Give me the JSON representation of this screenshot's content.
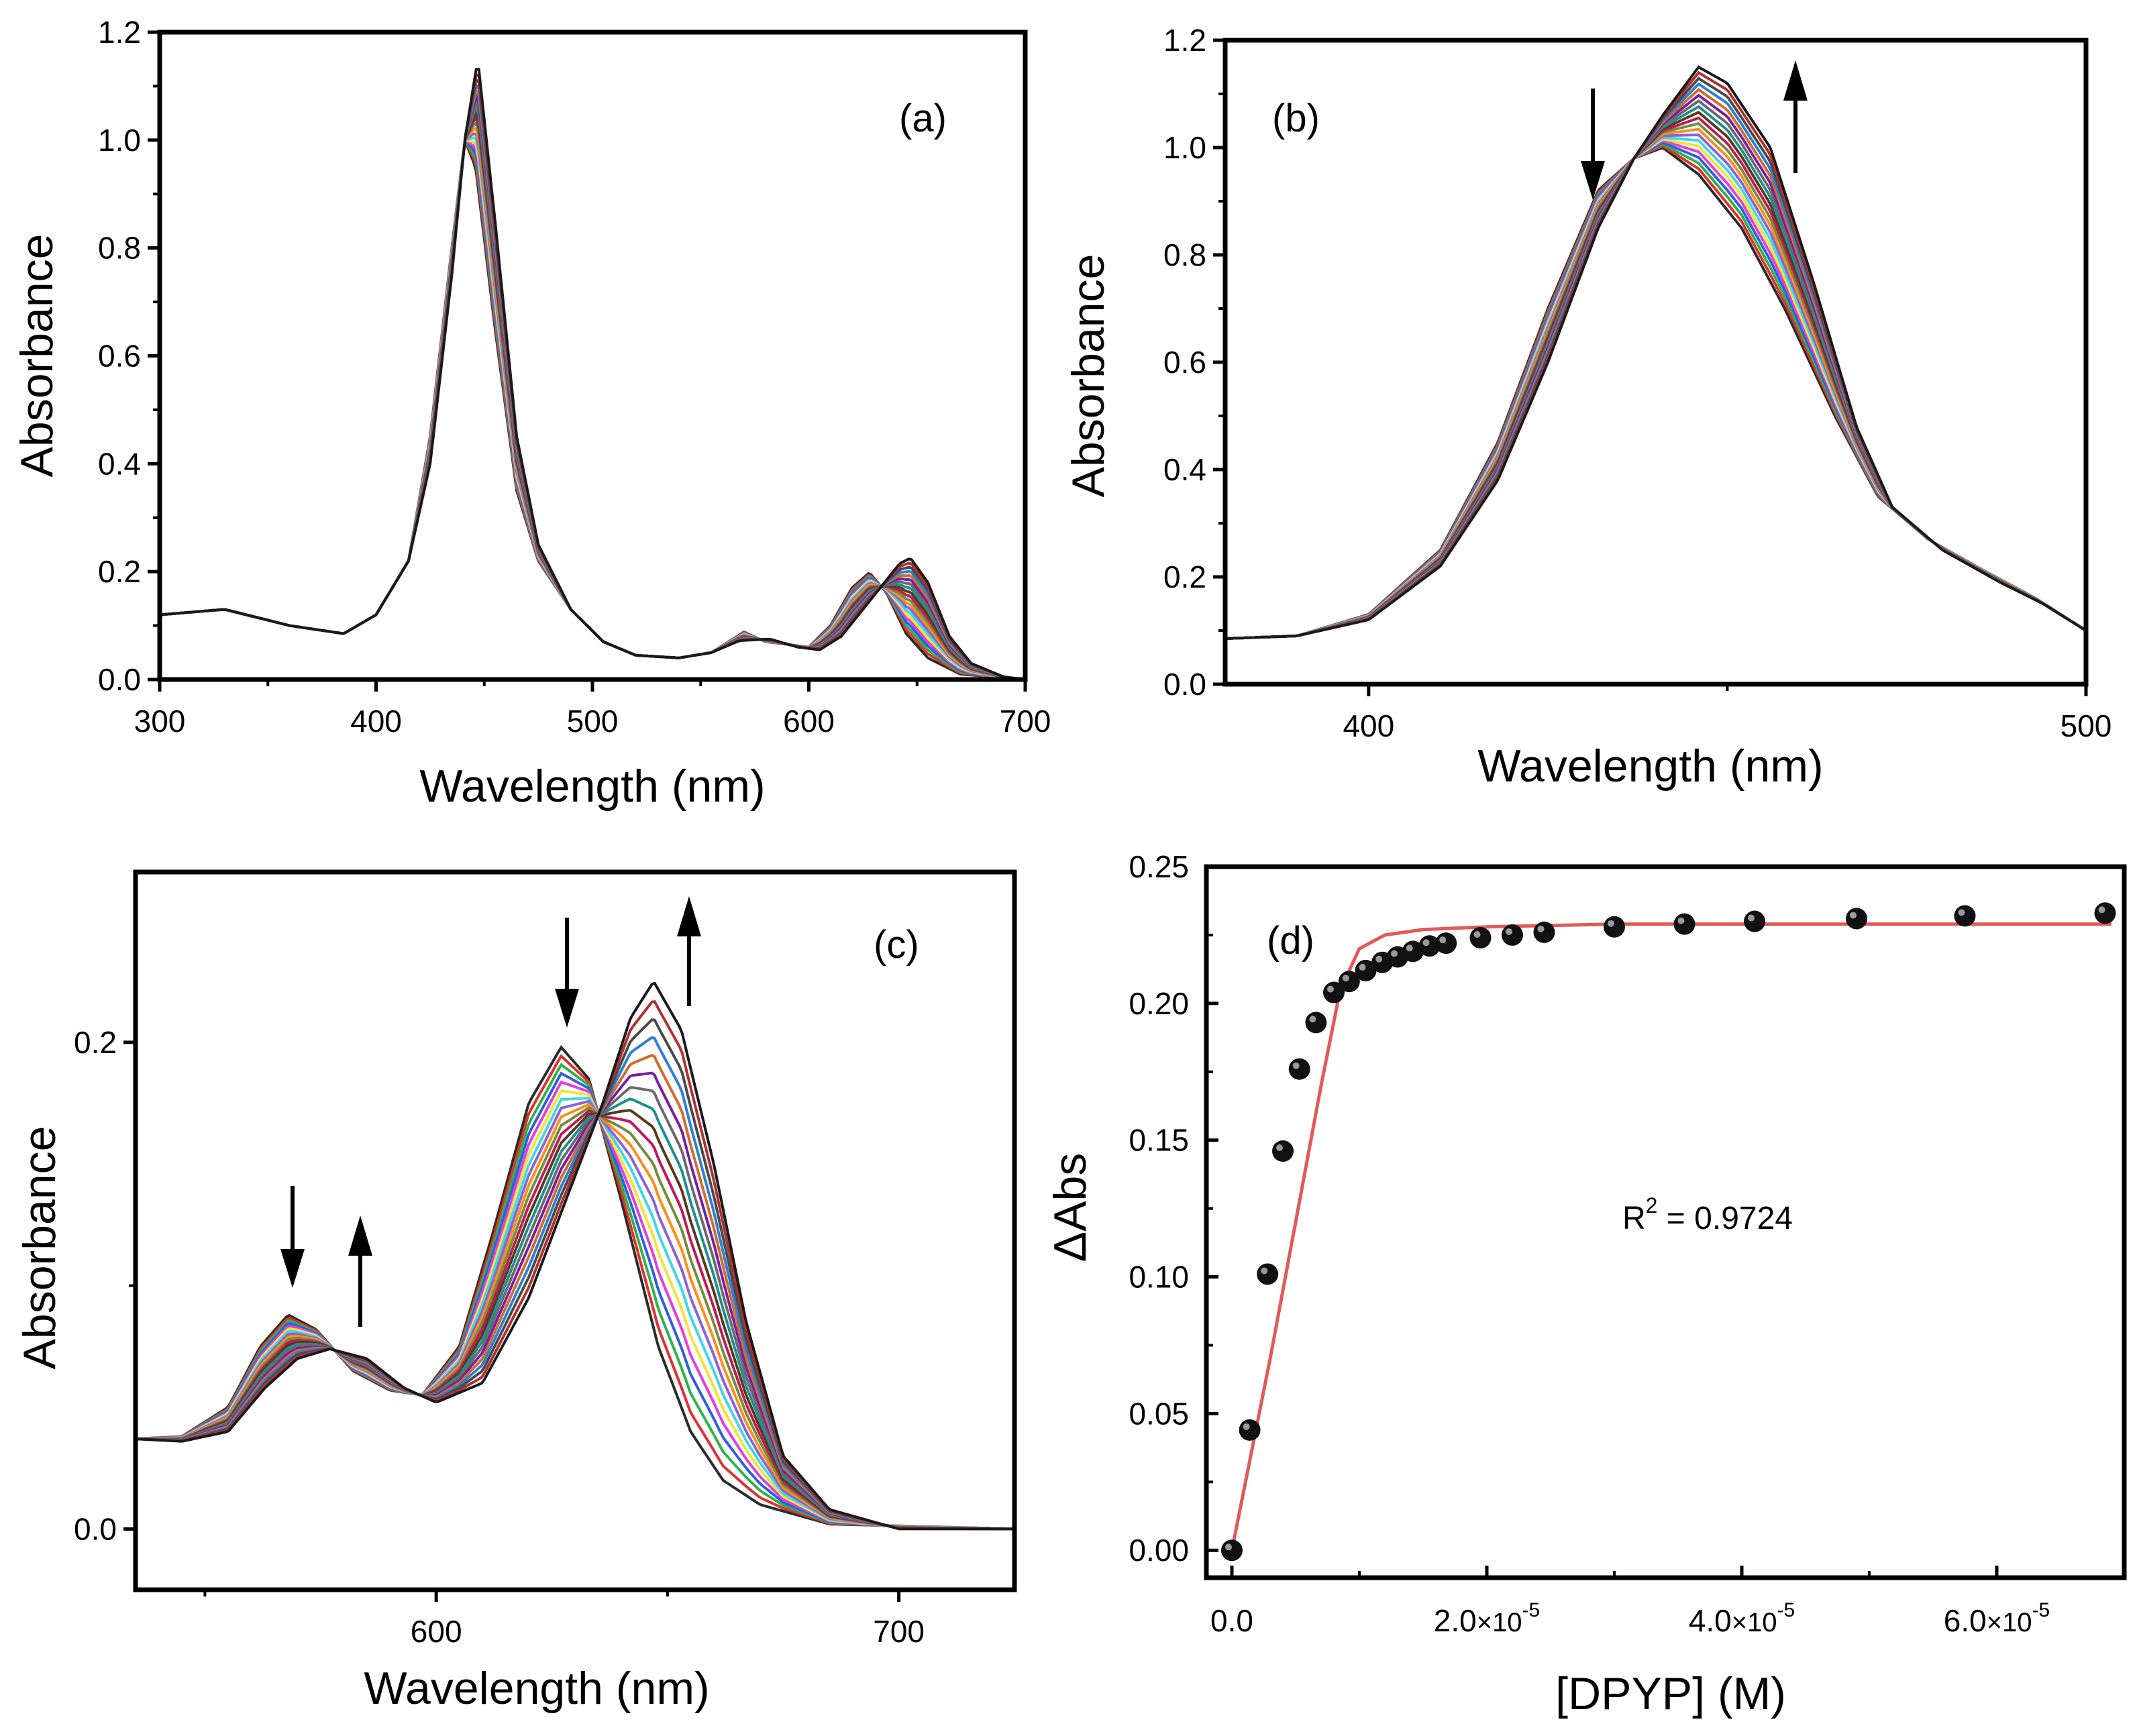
{
  "figure": {
    "panels": [
      "(a)",
      "(b)",
      "(c)",
      "(d)"
    ]
  },
  "chart_data": [
    {
      "id": "a",
      "type": "line",
      "label": "(a)",
      "xlabel": "Wavelength (nm)",
      "ylabel": "Absorbance",
      "xlim": [
        300,
        700
      ],
      "ylim": [
        0.0,
        1.2
      ],
      "xticks": [
        "300",
        "400",
        "500",
        "600",
        "700"
      ],
      "yticks": [
        "0.0",
        "0.2",
        "0.4",
        "0.6",
        "0.8",
        "1.0",
        "1.2"
      ],
      "series_count": 20,
      "spectrum_start": {
        "name": "initial spectrum",
        "points": [
          [
            300,
            0.12
          ],
          [
            330,
            0.13
          ],
          [
            360,
            0.1
          ],
          [
            385,
            0.085
          ],
          [
            400,
            0.12
          ],
          [
            415,
            0.22
          ],
          [
            425,
            0.45
          ],
          [
            435,
            0.8
          ],
          [
            441,
            1.0
          ],
          [
            446,
            0.95
          ],
          [
            455,
            0.65
          ],
          [
            465,
            0.35
          ],
          [
            475,
            0.22
          ],
          [
            490,
            0.13
          ],
          [
            505,
            0.07
          ],
          [
            520,
            0.045
          ],
          [
            540,
            0.04
          ],
          [
            555,
            0.05
          ],
          [
            570,
            0.088
          ],
          [
            580,
            0.07
          ],
          [
            590,
            0.065
          ],
          [
            600,
            0.06
          ],
          [
            610,
            0.1
          ],
          [
            620,
            0.17
          ],
          [
            628,
            0.198
          ],
          [
            636,
            0.16
          ],
          [
            645,
            0.085
          ],
          [
            655,
            0.04
          ],
          [
            670,
            0.01
          ],
          [
            700,
            0.0
          ]
        ]
      },
      "spectrum_end": {
        "name": "final spectrum",
        "points": [
          [
            300,
            0.12
          ],
          [
            330,
            0.13
          ],
          [
            360,
            0.1
          ],
          [
            385,
            0.085
          ],
          [
            400,
            0.12
          ],
          [
            415,
            0.22
          ],
          [
            425,
            0.4
          ],
          [
            435,
            0.75
          ],
          [
            441,
            1.0
          ],
          [
            447,
            1.15
          ],
          [
            455,
            0.85
          ],
          [
            465,
            0.45
          ],
          [
            475,
            0.25
          ],
          [
            490,
            0.13
          ],
          [
            505,
            0.07
          ],
          [
            520,
            0.045
          ],
          [
            540,
            0.04
          ],
          [
            555,
            0.05
          ],
          [
            568,
            0.072
          ],
          [
            582,
            0.075
          ],
          [
            595,
            0.06
          ],
          [
            605,
            0.055
          ],
          [
            615,
            0.08
          ],
          [
            625,
            0.13
          ],
          [
            635,
            0.18
          ],
          [
            642,
            0.215
          ],
          [
            647,
            0.225
          ],
          [
            655,
            0.18
          ],
          [
            665,
            0.08
          ],
          [
            675,
            0.03
          ],
          [
            690,
            0.005
          ],
          [
            700,
            0.0
          ]
        ]
      }
    },
    {
      "id": "b",
      "type": "line",
      "label": "(b)",
      "xlabel": "Wavelength (nm)",
      "ylabel": "Absorbance",
      "xlim": [
        380,
        500
      ],
      "ylim": [
        0.0,
        1.2
      ],
      "xticks": [
        "400",
        "500"
      ],
      "yticks": [
        "0.0",
        "0.2",
        "0.4",
        "0.6",
        "0.8",
        "1.0",
        "1.2"
      ],
      "series_count": 20,
      "annotations": [
        "arrow-down at ~430 nm (decrease)",
        "arrow-up at ~458 nm (increase)"
      ],
      "spectrum_start": {
        "name": "initial spectrum",
        "points": [
          [
            380,
            0.085
          ],
          [
            390,
            0.09
          ],
          [
            400,
            0.13
          ],
          [
            410,
            0.25
          ],
          [
            418,
            0.45
          ],
          [
            425,
            0.7
          ],
          [
            432,
            0.92
          ],
          [
            437,
            0.98
          ],
          [
            441,
            1.0
          ],
          [
            446,
            0.95
          ],
          [
            452,
            0.85
          ],
          [
            458,
            0.7
          ],
          [
            465,
            0.5
          ],
          [
            471,
            0.35
          ],
          [
            478,
            0.27
          ],
          [
            486,
            0.21
          ],
          [
            493,
            0.16
          ],
          [
            500,
            0.1
          ]
        ]
      },
      "spectrum_end": {
        "name": "final spectrum",
        "points": [
          [
            380,
            0.085
          ],
          [
            390,
            0.09
          ],
          [
            400,
            0.12
          ],
          [
            410,
            0.22
          ],
          [
            418,
            0.38
          ],
          [
            425,
            0.6
          ],
          [
            432,
            0.85
          ],
          [
            437,
            0.98
          ],
          [
            441,
            1.06
          ],
          [
            446,
            1.15
          ],
          [
            450,
            1.12
          ],
          [
            456,
            1.0
          ],
          [
            462,
            0.75
          ],
          [
            468,
            0.48
          ],
          [
            473,
            0.33
          ],
          [
            480,
            0.25
          ],
          [
            488,
            0.19
          ],
          [
            494,
            0.15
          ],
          [
            500,
            0.1
          ]
        ]
      }
    },
    {
      "id": "c",
      "type": "line",
      "label": "(c)",
      "xlabel": "Wavelength (nm)",
      "ylabel": "Absorbance",
      "xlim": [
        535,
        725
      ],
      "ylim": [
        -0.025,
        0.27
      ],
      "xticks": [
        "600",
        "700"
      ],
      "yticks": [
        "0.0",
        "0.2"
      ],
      "series_count": 20,
      "annotations": [
        "arrow-down at ~568 nm",
        "arrow-up at ~582 nm",
        "arrow-down at ~628 nm",
        "arrow-up at ~653 nm"
      ],
      "spectrum_start": {
        "name": "initial spectrum",
        "points": [
          [
            535,
            0.037
          ],
          [
            545,
            0.038
          ],
          [
            555,
            0.05
          ],
          [
            562,
            0.075
          ],
          [
            568,
            0.088
          ],
          [
            574,
            0.082
          ],
          [
            582,
            0.065
          ],
          [
            590,
            0.057
          ],
          [
            597,
            0.055
          ],
          [
            605,
            0.075
          ],
          [
            612,
            0.12
          ],
          [
            620,
            0.175
          ],
          [
            627,
            0.198
          ],
          [
            633,
            0.185
          ],
          [
            640,
            0.135
          ],
          [
            648,
            0.075
          ],
          [
            655,
            0.04
          ],
          [
            662,
            0.02
          ],
          [
            670,
            0.01
          ],
          [
            685,
            0.002
          ],
          [
            725,
            0.0
          ]
        ]
      },
      "spectrum_end": {
        "name": "final spectrum",
        "points": [
          [
            535,
            0.037
          ],
          [
            545,
            0.036
          ],
          [
            555,
            0.04
          ],
          [
            563,
            0.058
          ],
          [
            570,
            0.07
          ],
          [
            577,
            0.074
          ],
          [
            585,
            0.07
          ],
          [
            593,
            0.058
          ],
          [
            600,
            0.052
          ],
          [
            610,
            0.06
          ],
          [
            620,
            0.095
          ],
          [
            628,
            0.135
          ],
          [
            636,
            0.175
          ],
          [
            642,
            0.21
          ],
          [
            647,
            0.225
          ],
          [
            653,
            0.205
          ],
          [
            660,
            0.15
          ],
          [
            667,
            0.085
          ],
          [
            675,
            0.03
          ],
          [
            685,
            0.008
          ],
          [
            700,
            0.0
          ],
          [
            725,
            0.0
          ]
        ]
      }
    },
    {
      "id": "d",
      "type": "scatter",
      "label": "(d)",
      "xlabel": "[DPYP] (M)",
      "ylabel": "ΔAbs",
      "xlim": [
        -0.2,
        7.0
      ],
      "x_unit_note": "x values in units of 1e-5 M",
      "ylim": [
        -0.01,
        0.25
      ],
      "xticks": [
        {
          "mant": "0.0",
          "exp": ""
        },
        {
          "mant": "2.0",
          "sep": "×10",
          "exp": "-5"
        },
        {
          "mant": "4.0",
          "sep": "×10",
          "exp": "-5"
        },
        {
          "mant": "6.0",
          "sep": "×10",
          "exp": "-5"
        }
      ],
      "yticks": [
        "0.00",
        "0.05",
        "0.10",
        "0.15",
        "0.20",
        "0.25"
      ],
      "annotation": {
        "main": "R",
        "sup": "2",
        "rest": " = 0.9724"
      },
      "points": [
        [
          0.0,
          0.0
        ],
        [
          0.14,
          0.044
        ],
        [
          0.28,
          0.101
        ],
        [
          0.4,
          0.146
        ],
        [
          0.53,
          0.176
        ],
        [
          0.66,
          0.193
        ],
        [
          0.8,
          0.204
        ],
        [
          0.92,
          0.208
        ],
        [
          1.05,
          0.212
        ],
        [
          1.18,
          0.215
        ],
        [
          1.3,
          0.217
        ],
        [
          1.42,
          0.219
        ],
        [
          1.55,
          0.221
        ],
        [
          1.68,
          0.222
        ],
        [
          1.95,
          0.224
        ],
        [
          2.2,
          0.225
        ],
        [
          2.45,
          0.226
        ],
        [
          3.0,
          0.228
        ],
        [
          3.55,
          0.229
        ],
        [
          4.1,
          0.23
        ],
        [
          4.9,
          0.231
        ],
        [
          5.75,
          0.232
        ],
        [
          6.85,
          0.233
        ]
      ],
      "fit": {
        "name": "fit curve",
        "color": "#e05a5a",
        "points": [
          [
            0.0,
            0.0
          ],
          [
            0.3,
            0.07
          ],
          [
            0.5,
            0.12
          ],
          [
            0.7,
            0.17
          ],
          [
            0.85,
            0.205
          ],
          [
            1.0,
            0.22
          ],
          [
            1.2,
            0.225
          ],
          [
            1.5,
            0.227
          ],
          [
            2.0,
            0.228
          ],
          [
            3.0,
            0.229
          ],
          [
            5.0,
            0.229
          ],
          [
            6.9,
            0.229
          ]
        ]
      }
    }
  ],
  "palette": [
    "#2b2b2b",
    "#e0302f",
    "#2fb24a",
    "#2f5fe0",
    "#e040d8",
    "#f2e23a",
    "#41d6e6",
    "#8b62d8",
    "#ff8c1a",
    "#6f8f3a",
    "#c2185b",
    "#5a3a1a",
    "#1f8f8f",
    "#6a6a6a",
    "#7a1fa2",
    "#d46b2a",
    "#2a7fd6",
    "#4a4a4a",
    "#b03030",
    "#1a1a1a"
  ]
}
